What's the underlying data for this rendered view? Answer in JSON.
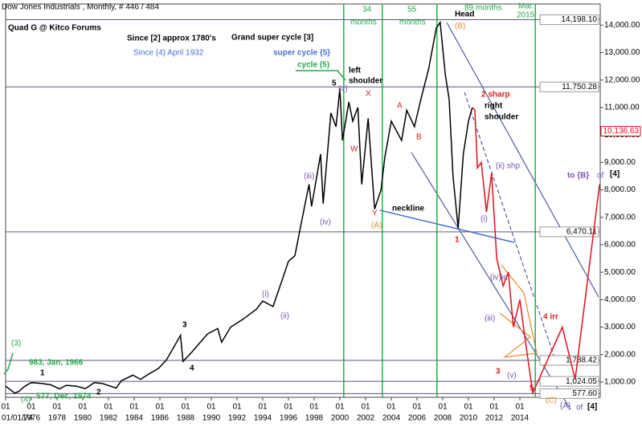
{
  "chart_data": {
    "type": "line",
    "title": "Dow Jones Industrials , Monthly, # 446 / 484",
    "series": [
      {
        "color": "#000000",
        "x": [
          1974.0,
          1974.7,
          1975.0,
          1975.5,
          1976.0,
          1976.8,
          1977.5,
          1978.2,
          1978.7,
          1979.5,
          1980.2,
          1980.9,
          1981.5,
          1982.6,
          1983.0,
          1983.9,
          1984.5,
          1985.0,
          1985.9,
          1986.5,
          1987.0,
          1987.6,
          1987.8,
          1988.5,
          1989.7,
          1990.5,
          1990.8,
          1991.5,
          1992.5,
          1993.5,
          1994.0,
          1994.8,
          1995.5,
          1996.0,
          1996.5,
          1997.0,
          1997.6,
          1997.8,
          1998.5,
          1998.7,
          1999.3,
          1999.7,
          2000.0,
          2000.2,
          2000.7,
          2001.0,
          2001.4,
          2001.7,
          2002.2,
          2002.7,
          2003.2,
          2003.5,
          2004.0,
          2004.8,
          2005.2,
          2005.8,
          2006.3,
          2006.9,
          2007.5,
          2007.8,
          2008.2,
          2008.5,
          2008.8,
          2009.2,
          2009.6,
          2010.0,
          2010.3
        ],
        "values": [
          850,
          600,
          650,
          850,
          980,
          950,
          900,
          750,
          880,
          850,
          760,
          980,
          950,
          780,
          1050,
          1250,
          1100,
          1250,
          1500,
          1800,
          2200,
          2700,
          1750,
          2100,
          2750,
          2950,
          2450,
          3000,
          3300,
          3650,
          3950,
          3750,
          4700,
          5400,
          5600,
          6800,
          8200,
          7400,
          9300,
          7500,
          10800,
          10300,
          11700,
          9800,
          11200,
          10500,
          11000,
          8200,
          10600,
          7300,
          8000,
          9200,
          10500,
          9800,
          10900,
          10300,
          11300,
          12400,
          13900,
          14100,
          12200,
          11300,
          8500,
          6600,
          9300,
          10500,
          11000
        ]
      },
      {
        "color": "#e0101e",
        "x": [
          2010.3,
          2010.5,
          2010.7,
          2011.0,
          2011.4,
          2011.8,
          2012.2,
          2012.7,
          2013.1,
          2013.5,
          2014.0,
          2014.4,
          2015.0,
          2017.3,
          2018.3,
          2020.2
        ],
        "values": [
          11000,
          10900,
          8800,
          9000,
          7200,
          8600,
          5500,
          4500,
          5000,
          3000,
          4000,
          2600,
          600,
          3000,
          1100,
          8200
        ]
      }
    ],
    "xlim": [
      1974,
      2020.25
    ],
    "xticks": [
      {
        "value": 1974,
        "label": "01/01/74"
      },
      1976,
      1978,
      1980,
      1982,
      1984,
      1986,
      1988,
      1990,
      1992,
      1994,
      1996,
      1998,
      2000,
      2002,
      2004,
      2006,
      2008,
      2010,
      2012,
      2014
    ],
    "minor_tick_label": "01",
    "ylim": [
      444,
      14770
    ],
    "yticks": [
      {
        "value": 1000,
        "label": "1,000.00"
      },
      {
        "value": 2000,
        "label": "2,000.00"
      },
      {
        "value": 3000,
        "label": "3,000.00"
      },
      {
        "value": 4000,
        "label": "4,000.00"
      },
      {
        "value": 5000,
        "label": "5,000.00"
      },
      {
        "value": 6000,
        "label": "6,000.00"
      },
      {
        "value": 7000,
        "label": "7,000.00"
      },
      {
        "value": 8000,
        "label": "8,000.00"
      },
      {
        "value": 9000,
        "label": "9,000.00"
      },
      {
        "value": 10000,
        "label": "10,000.00"
      },
      {
        "value": 11000,
        "label": "11,000.00"
      },
      {
        "value": 12000,
        "label": "12,000.00"
      },
      {
        "value": 13000,
        "label": "13,000.00"
      },
      {
        "value": 14000,
        "label": "14,000.00"
      }
    ],
    "hlines": [
      {
        "value": 14198.1,
        "label": "14,198.10"
      },
      {
        "value": 11750.28,
        "label": "11,750.28"
      },
      {
        "value": 6470.11,
        "label": "6,470.11"
      },
      {
        "value": 1788.42,
        "label": "1,788.42"
      },
      {
        "value": 1024.05,
        "label": "1,024.05"
      },
      {
        "value": 577.6,
        "label": "577.60"
      }
    ],
    "last_value": {
      "value": 10136.63,
      "label": "10,136.63",
      "color": "#e0101e"
    },
    "vlines": {
      "color": "#22b24a",
      "values": [
        2000.3,
        2003.3,
        2007.55,
        2015.2
      ]
    },
    "annotations": [
      {
        "text": "Quad G @ Kitco Forums",
        "color": "#000000"
      },
      {
        "text": "Since [2] approx 1780's",
        "color": "#000000"
      },
      {
        "text": "Grand super cycle [3]",
        "color": "#000000"
      },
      {
        "text": "Since (4) April 1932",
        "color": "#4a6fd6"
      },
      {
        "text": "super cycle {5}",
        "color": "#4a6fd6"
      },
      {
        "text": "cycle (5)",
        "color": "#22a84a"
      },
      {
        "text": "left",
        "color": "#000000"
      },
      {
        "text": "shoulder",
        "color": "#000000"
      },
      {
        "text": "5",
        "color": "#000000"
      },
      {
        "text": "(v)",
        "color": "#7a4fb0"
      },
      {
        "text": "X",
        "color": "#d82020"
      },
      {
        "text": "W",
        "color": "#d82020"
      },
      {
        "text": "Y",
        "color": "#d82020"
      },
      {
        "text": "(A)",
        "color": "#e8892a"
      },
      {
        "text": "neckline",
        "color": "#000000"
      },
      {
        "text": "A",
        "color": "#d82020"
      },
      {
        "text": "B",
        "color": "#d82020"
      },
      {
        "text": "Head",
        "color": "#000000"
      },
      {
        "text": "(B)",
        "color": "#e8892a"
      },
      {
        "text": "34",
        "color": "#22a84a"
      },
      {
        "text": "months",
        "color": "#22a84a"
      },
      {
        "text": "55",
        "color": "#22a84a"
      },
      {
        "text": "months",
        "color": "#22a84a"
      },
      {
        "text": "89 months",
        "color": "#22a84a"
      },
      {
        "text": "Mar.",
        "color": "#22a84a"
      },
      {
        "text": "2015",
        "color": "#22a84a"
      },
      {
        "text": "2 sharp",
        "color": "#d82020"
      },
      {
        "text": "right",
        "color": "#000000"
      },
      {
        "text": "shoulder",
        "color": "#000000"
      },
      {
        "text": "(ii) shp",
        "color": "#7a4fb0"
      },
      {
        "text": "(i)",
        "color": "#7a4fb0"
      },
      {
        "text": "1",
        "color": "#d82020"
      },
      {
        "text": "(iv)irr",
        "color": "#7a4fb0"
      },
      {
        "text": "(iii)",
        "color": "#7a4fb0"
      },
      {
        "text": "(v)",
        "color": "#7a4fb0"
      },
      {
        "text": "3",
        "color": "#d82020"
      },
      {
        "text": "4 irr",
        "color": "#d82020"
      },
      {
        "text": "5",
        "color": "#d82020"
      },
      {
        "text": "(C)",
        "color": "#e8892a"
      },
      {
        "text": "{A}",
        "color": "#7a4fb0"
      },
      {
        "text": "of",
        "color": "#7a4fb0"
      },
      {
        "text": "[4]",
        "color": "#000000"
      },
      {
        "text": "to {B}",
        "color": "#7a4fb0"
      },
      {
        "text": "of",
        "color": "#7a4fb0"
      },
      {
        "text": "[4]",
        "color": "#000000"
      },
      {
        "text": "(iii)",
        "color": "#7a4fb0"
      },
      {
        "text": "(iv)",
        "color": "#7a4fb0"
      },
      {
        "text": "(i)",
        "color": "#7a4fb0"
      },
      {
        "text": "(ii)",
        "color": "#7a4fb0"
      },
      {
        "text": "3",
        "color": "#000000"
      },
      {
        "text": "4",
        "color": "#000000"
      },
      {
        "text": "1",
        "color": "#000000"
      },
      {
        "text": "2",
        "color": "#000000"
      },
      {
        "text": "(3)",
        "color": "#22a84a"
      },
      {
        "text": "983, Jan, 1966",
        "color": "#22a84a"
      },
      {
        "text": "(4)",
        "color": "#22a84a"
      },
      {
        "text": "577, Dec, 1974",
        "color": "#22a84a"
      }
    ]
  }
}
